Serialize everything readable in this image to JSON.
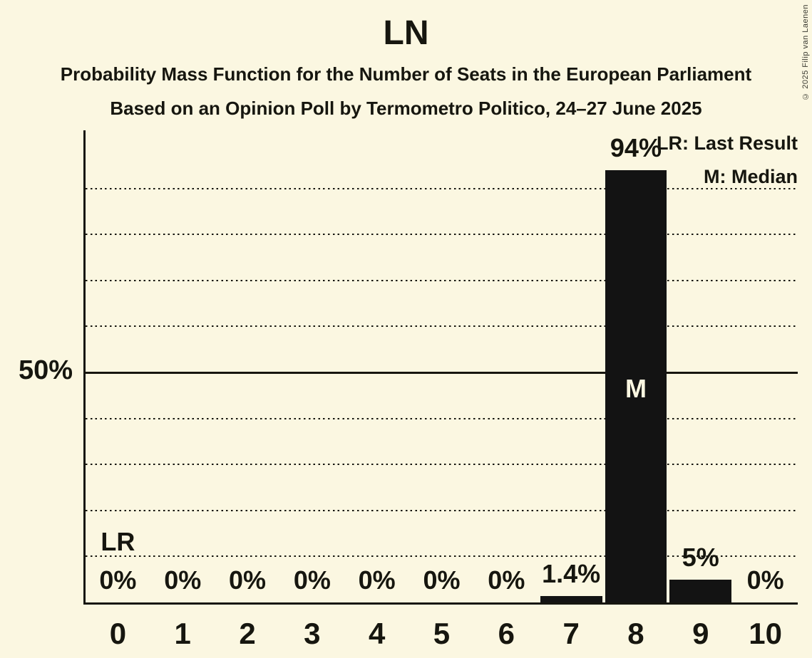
{
  "title": "LN",
  "subtitle_line1": "Probability Mass Function for the Number of Seats in the European Parliament",
  "subtitle_line2": "Based on an Opinion Poll by Termometro Politico, 24–27 June 2025",
  "copyright": "© 2025 Filip van Laenen",
  "legend": {
    "last_result": "LR: Last Result",
    "median": "M: Median"
  },
  "colors": {
    "background": "#FBF7E1",
    "ink": "#16160F",
    "bar": "#131313",
    "median_text": "#FBF7E1"
  },
  "chart_data": {
    "type": "bar",
    "title": "LN",
    "subtitle": "Probability Mass Function for the Number of Seats in the European Parliament",
    "source_line": "Based on an Opinion Poll by Termometro Politico, 24–27 June 2025",
    "categories": [
      "0",
      "1",
      "2",
      "3",
      "4",
      "5",
      "6",
      "7",
      "8",
      "9",
      "10"
    ],
    "values": [
      0,
      0,
      0,
      0,
      0,
      0,
      0,
      1.4,
      94,
      5,
      0
    ],
    "value_labels": [
      "0%",
      "0%",
      "0%",
      "0%",
      "0%",
      "0%",
      "0%",
      "1.4%",
      "94%",
      "5%",
      "0%"
    ],
    "xlabel": "",
    "ylabel": "",
    "ylim_pct": [
      0,
      102
    ],
    "y_gridlines_pct": [
      10,
      20,
      30,
      40,
      50,
      60,
      70,
      80,
      90
    ],
    "y_solid_gridline_pct": 50,
    "y_tick_label": {
      "pct": 50,
      "text": "50%"
    },
    "grid": "dotted horizontal, solid at 50%",
    "legend_position": "top-right",
    "legend_entries": [
      "LR: Last Result",
      "M: Median"
    ],
    "annotations": {
      "last_result_seats": 0,
      "last_result_text": "LR",
      "median_seats": 8,
      "median_text": "M"
    }
  }
}
